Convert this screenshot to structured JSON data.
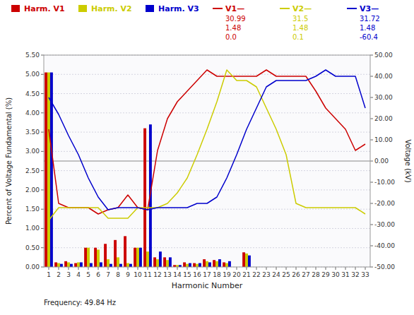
{
  "chart_data": {
    "type": "bar",
    "x_label": "Harmonic Number",
    "y_label": "Percent of Voltage Fundamental (%)",
    "y2_label": "Voltage (kV)",
    "annotations": [
      "Frequency: 49.84 Hz"
    ],
    "categories": [
      "1",
      "2",
      "3",
      "4",
      "5",
      "6",
      "7",
      "8",
      "9",
      "10",
      "11",
      "12",
      "13",
      "14",
      "15",
      "16",
      "17",
      "18",
      "19",
      "20",
      "21",
      "22",
      "23",
      "24",
      "25",
      "26",
      "27",
      "28",
      "29",
      "30",
      "31",
      "32",
      "33"
    ],
    "series": [
      {
        "name": "Harm. V1",
        "color": "#cc0000",
        "values": [
          5.05,
          0.12,
          0.15,
          0.1,
          0.5,
          0.5,
          0.6,
          0.7,
          0.8,
          0.5,
          3.6,
          0.25,
          0.25,
          0.05,
          0.12,
          0.1,
          0.2,
          0.18,
          0.12,
          0.0,
          0.38,
          0.0,
          0.0,
          0.0,
          0.0,
          0.0,
          0.0,
          0.0,
          0.0,
          0.0,
          0.0,
          0.0,
          0.0
        ]
      },
      {
        "name": "Harm. V2",
        "color": "#cccc00",
        "values": [
          5.05,
          0.1,
          0.12,
          0.12,
          0.5,
          0.45,
          0.2,
          0.25,
          0.1,
          0.5,
          0.4,
          0.2,
          0.18,
          0.05,
          0.08,
          0.08,
          0.15,
          0.15,
          0.1,
          0.0,
          0.35,
          0.0,
          0.0,
          0.0,
          0.0,
          0.0,
          0.0,
          0.0,
          0.0,
          0.0,
          0.0,
          0.0,
          0.0
        ]
      },
      {
        "name": "Harm. V3",
        "color": "#0000cc",
        "values": [
          5.05,
          0.08,
          0.08,
          0.12,
          0.1,
          0.12,
          0.08,
          0.08,
          0.08,
          0.5,
          3.7,
          0.4,
          0.25,
          0.05,
          0.1,
          0.1,
          0.12,
          0.2,
          0.15,
          0.0,
          0.3,
          0.0,
          0.0,
          0.0,
          0.0,
          0.0,
          0.0,
          0.0,
          0.0,
          0.0,
          0.0,
          0.0,
          0.0
        ]
      },
      {
        "name": "V1—",
        "type": "line",
        "axis": "y2",
        "color": "#cc0000",
        "annotations": [
          "30.99",
          "1.48",
          "0.0"
        ],
        "values": [
          15.0,
          -20.0,
          -22.0,
          -22.0,
          -22.0,
          -25.0,
          -23.0,
          -22.0,
          -16.0,
          -22.0,
          -23.0,
          5.0,
          20.0,
          28.0,
          33.0,
          38.0,
          43.0,
          40.0,
          40.0,
          40.0,
          40.0,
          40.0,
          43.0,
          40.0,
          40.0,
          40.0,
          40.0,
          33.0,
          25.0,
          20.0,
          15.0,
          5.0,
          8.0
        ]
      },
      {
        "name": "V2—",
        "type": "line",
        "axis": "y2",
        "color": "#cccc00",
        "annotations": [
          "31.5",
          "1.48",
          "0.1"
        ],
        "values": [
          -28.0,
          -22.0,
          -22.0,
          -22.0,
          -22.0,
          -22.0,
          -27.0,
          -27.0,
          -27.0,
          -22.0,
          -22.0,
          -22.0,
          -20.0,
          -15.0,
          -8.0,
          3.0,
          15.0,
          28.0,
          43.0,
          38.0,
          38.0,
          35.0,
          25.0,
          15.0,
          3.0,
          -20.0,
          -22.0,
          -22.0,
          -22.0,
          -22.0,
          -22.0,
          -22.0,
          -25.0
        ]
      },
      {
        "name": "V3—",
        "type": "line",
        "axis": "y2",
        "color": "#0000cc",
        "annotations": [
          "31.72",
          "1.48",
          "-60.4"
        ],
        "values": [
          30.0,
          22.0,
          12.0,
          3.0,
          -8.0,
          -17.0,
          -23.0,
          -22.0,
          -22.0,
          -22.0,
          -23.0,
          -22.0,
          -22.0,
          -22.0,
          -22.0,
          -20.0,
          -20.0,
          -17.0,
          -8.0,
          3.0,
          15.0,
          25.0,
          35.0,
          38.0,
          38.0,
          38.0,
          38.0,
          40.0,
          43.0,
          40.0,
          40.0,
          40.0,
          25.0
        ]
      }
    ],
    "ylim": [
      0.0,
      5.5
    ],
    "yticks": [
      {
        "value": 0.0,
        "label": "0.00"
      },
      {
        "value": 0.5,
        "label": "0.50"
      },
      {
        "value": 1.0,
        "label": "1.00"
      },
      {
        "value": 1.5,
        "label": "1.50"
      },
      {
        "value": 2.0,
        "label": "2.00"
      },
      {
        "value": 2.5,
        "label": "2.50"
      },
      {
        "value": 3.0,
        "label": "3.00"
      },
      {
        "value": 3.5,
        "label": "3.50"
      },
      {
        "value": 4.0,
        "label": "4.00"
      },
      {
        "value": 4.5,
        "label": "4.50"
      },
      {
        "value": 5.0,
        "label": "5.00"
      },
      {
        "value": 5.5,
        "label": "5.50"
      }
    ],
    "y2lim": [
      -50.0,
      50.0
    ],
    "y2ticks": [
      {
        "value": -50,
        "label": "-50.00"
      },
      {
        "value": -40,
        "label": "-40.00"
      },
      {
        "value": -30,
        "label": "-30.00"
      },
      {
        "value": -20,
        "label": "-20.00"
      },
      {
        "value": -10,
        "label": "-10.00"
      },
      {
        "value": 0,
        "label": "0.00"
      },
      {
        "value": 10,
        "label": "10.00"
      },
      {
        "value": 20,
        "label": "20.00"
      },
      {
        "value": 30,
        "label": "30.00"
      },
      {
        "value": 40,
        "label": "40.00"
      },
      {
        "value": 50,
        "label": "50.00"
      }
    ],
    "grid": true
  }
}
